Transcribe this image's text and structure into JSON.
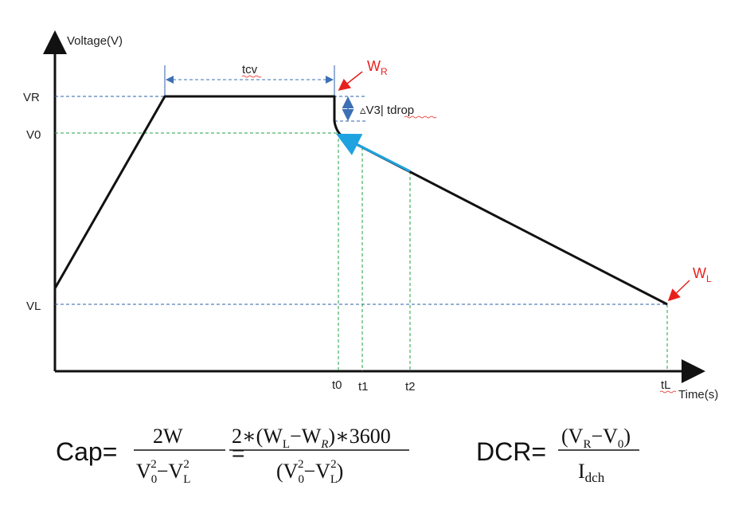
{
  "axes": {
    "y_label": "Voltage(V)",
    "x_label": "Time(s)"
  },
  "y_ticks": {
    "vr": "VR",
    "v0": "V0",
    "vl": "VL"
  },
  "x_ticks": {
    "t0": "t0",
    "t1": "t1",
    "t2": "t2",
    "tl": "tL"
  },
  "annotations": {
    "tcv": "tcv",
    "delta": "▵V3| tdrop",
    "wr_main": "W",
    "wr_sub": "R",
    "wl_main": "W",
    "wl_sub": "L"
  },
  "formula_cap": {
    "lhs": "Cap=",
    "frac1_num": "2W",
    "frac1_den_v0": "V",
    "frac1_den_v0_sub": "0",
    "frac1_den_exp": "2",
    "frac1_den_minus": "−V",
    "frac1_den_vl_sub": "L",
    "frac1_den_exp2": "2",
    "equals": "=",
    "frac2_num_a": "2∗(W",
    "frac2_num_sub_l": "L",
    "frac2_num_b": "−W",
    "frac2_num_sub_r": "R",
    "frac2_num_c": ")∗3600",
    "frac2_den_a": "(V",
    "frac2_den_sub0": "0",
    "frac2_den_exp": "2",
    "frac2_den_b": "−V",
    "frac2_den_subl": "L",
    "frac2_den_exp2": "2",
    "frac2_den_c": ")"
  },
  "formula_dcr": {
    "lhs": "DCR=",
    "num_a": "(V",
    "num_sub_r": "R",
    "num_b": "−V",
    "num_sub_0": "0",
    "num_c": ")",
    "den_main": "I",
    "den_sub": "dch"
  },
  "colors": {
    "curve": "#111111",
    "axis": "#111111",
    "blue_guide": "#2e5fa8",
    "green_guide": "#22a045",
    "cyan_segment": "#1fa2e0",
    "red_marker": "#e8201c",
    "dim_arrow": "#3d6fb5"
  }
}
